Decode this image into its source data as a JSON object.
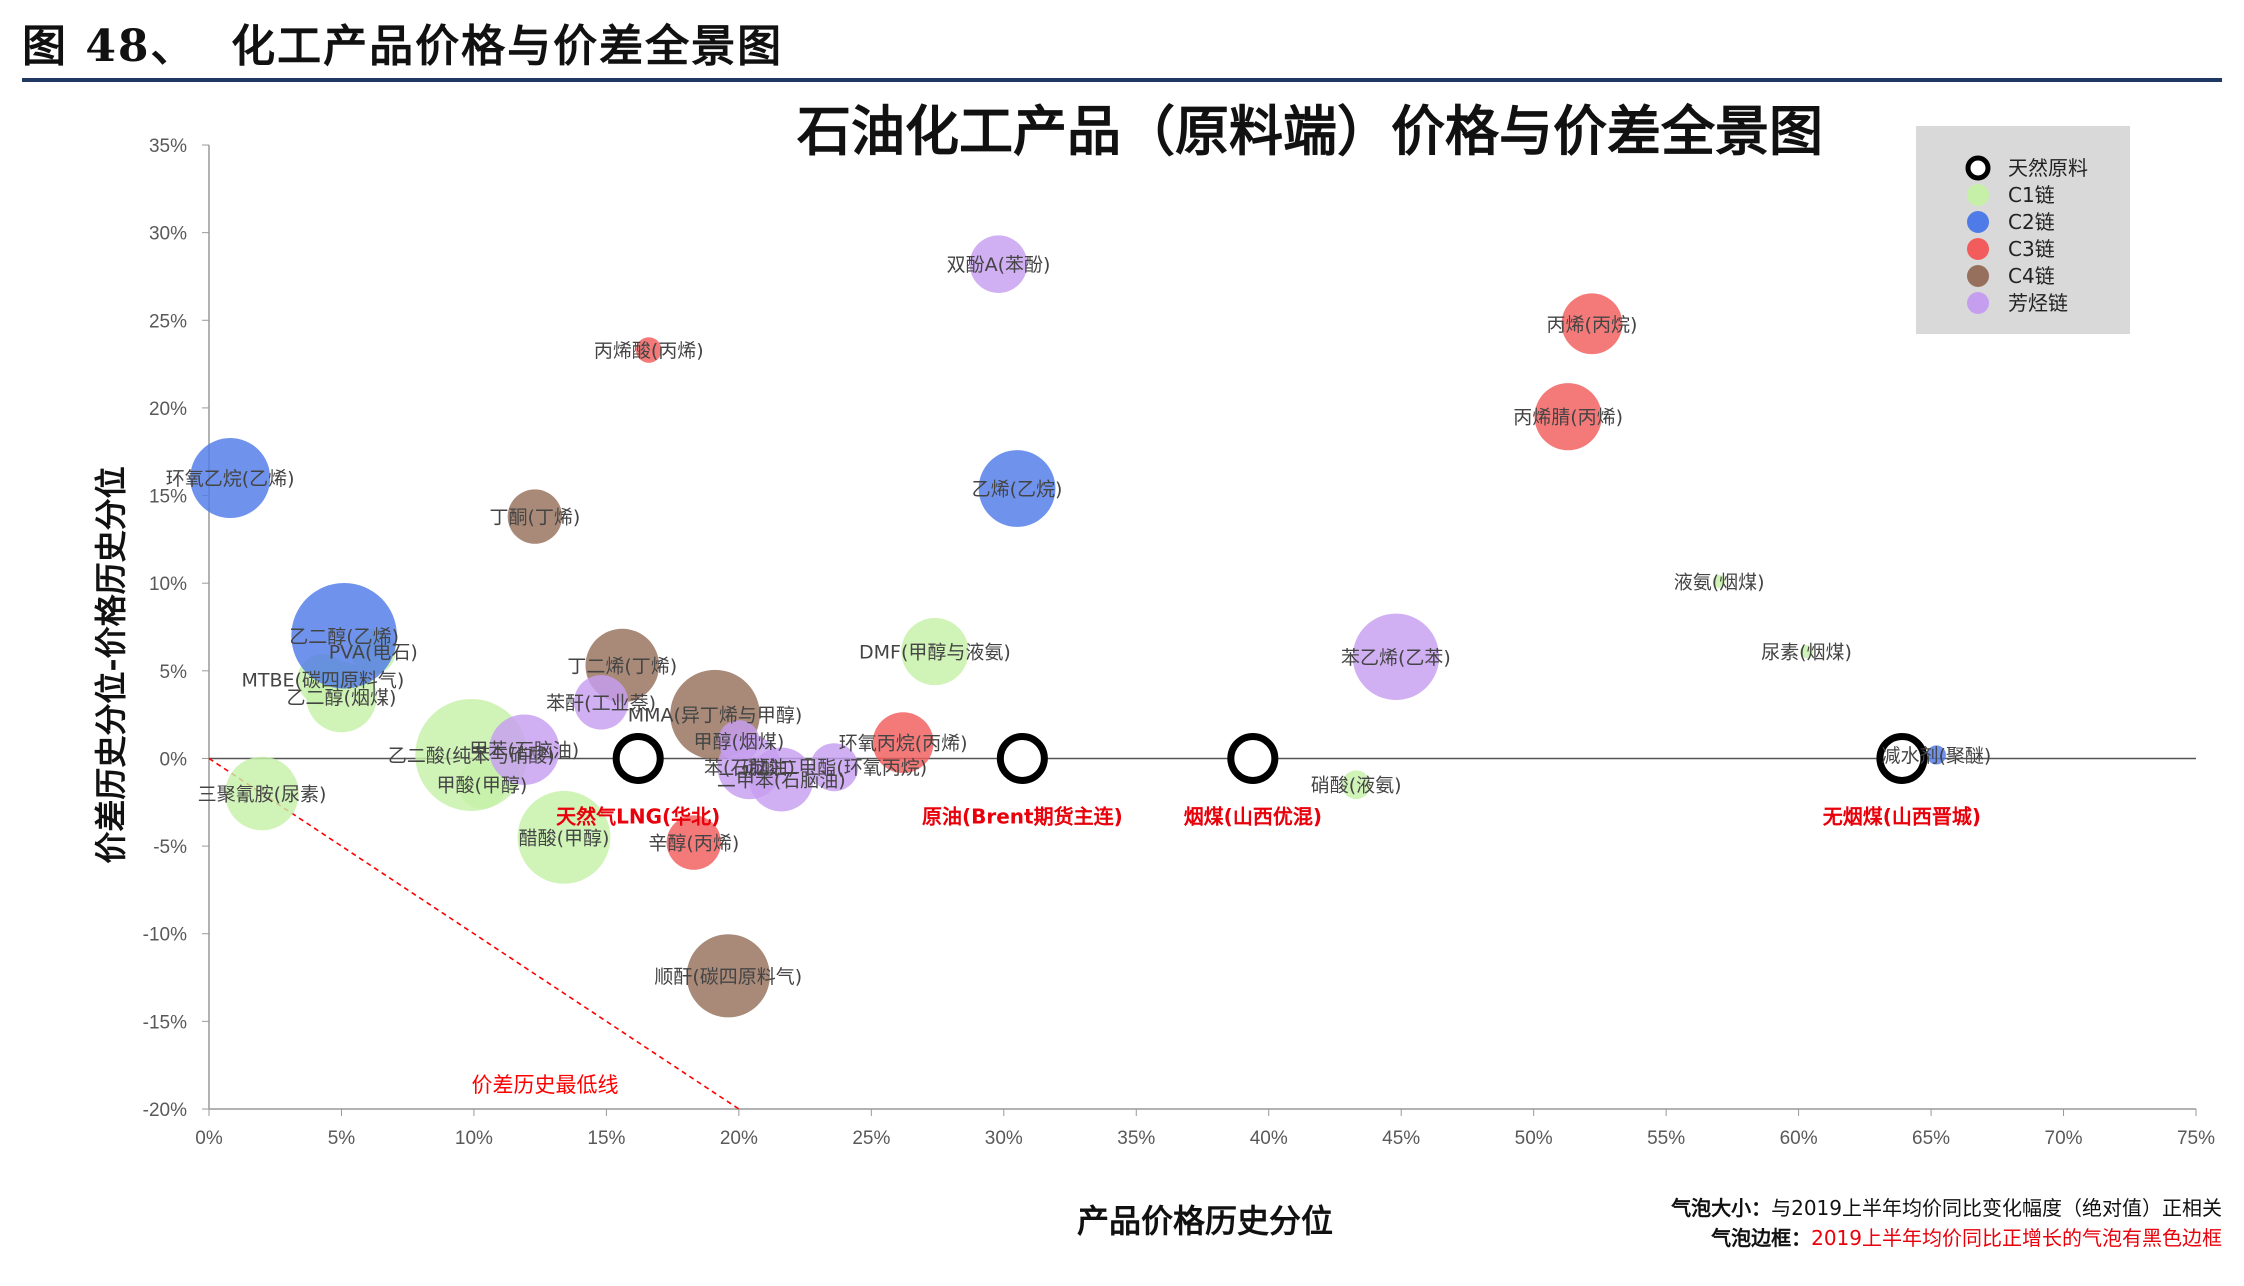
{
  "figure_title": "图 48、  化工产品价格与价差全景图",
  "footnotes": [
    {
      "label": "气泡大小：",
      "text": "与2019上半年均价同比变化幅度（绝对值）正相关",
      "color": "#111111"
    },
    {
      "label": "气泡边框：",
      "text": "2019上半年均价同比正增长的气泡有黑色边框",
      "color": "#e8000b"
    }
  ],
  "chart_data": {
    "type": "scatter",
    "title": "石油化工产品（原料端）价格与价差全景图",
    "xlabel": "产品价格历史分位",
    "ylabel": "价差历史分位-价格历史分位",
    "xlim": [
      0,
      75
    ],
    "ylim": [
      -20,
      35
    ],
    "x_ticks": [
      "0%",
      "5%",
      "10%",
      "15%",
      "20%",
      "25%",
      "30%",
      "35%",
      "40%",
      "45%",
      "50%",
      "55%",
      "60%",
      "65%",
      "70%",
      "75%"
    ],
    "y_ticks": [
      "35%",
      "30%",
      "25%",
      "20%",
      "15%",
      "10%",
      "5%",
      "0%",
      "-5%",
      "-10%",
      "-15%",
      "-20%"
    ],
    "grid": false,
    "legend_position": "top-right",
    "legend": [
      {
        "name": "天然原料",
        "color": "#000000",
        "marker": "ring"
      },
      {
        "name": "C1链",
        "color": "#c6f0a8",
        "marker": "dot"
      },
      {
        "name": "C2链",
        "color": "#4f7be8",
        "marker": "dot"
      },
      {
        "name": "C3链",
        "color": "#f25c5c",
        "marker": "dot"
      },
      {
        "name": "C4链",
        "color": "#96705c",
        "marker": "dot"
      },
      {
        "name": "芳烃链",
        "color": "#c69ef0",
        "marker": "dot"
      }
    ],
    "reference_line": {
      "label": "价差历史最低线",
      "from": [
        0,
        0
      ],
      "to": [
        20,
        -20
      ],
      "color": "#ff0000"
    },
    "series": [
      {
        "name": "天然原料",
        "color": "#000000",
        "points": [
          {
            "label": "天然气LNG(华北)",
            "x": 16.2,
            "y": 0,
            "size": 1
          },
          {
            "label": "原油(Brent期货主连)",
            "x": 30.7,
            "y": 0,
            "size": 1
          },
          {
            "label": "烟煤(山西优混)",
            "x": 39.4,
            "y": 0,
            "size": 1
          },
          {
            "label": "无烟煤(山西晋城)",
            "x": 63.9,
            "y": 0,
            "size": 1
          }
        ]
      },
      {
        "name": "C1链",
        "color": "#c6f0a8",
        "points": [
          {
            "label": "乙二醇(烟煤)",
            "x": 5.0,
            "y": 3.5,
            "size": 2.2
          },
          {
            "label": "PVA(电石)",
            "x": 6.2,
            "y": 6.1,
            "size": 1.4
          },
          {
            "label": "MTBE(碳四原料气)",
            "x": 4.3,
            "y": 4.5,
            "size": 1.6
          },
          {
            "label": "乙二酸(纯苯与硝酸)",
            "x": 9.9,
            "y": 0.2,
            "size": 3.5
          },
          {
            "label": "甲酸(甲醇)",
            "x": 10.3,
            "y": -1.5,
            "size": 1.5
          },
          {
            "label": "三聚氰胺(尿素)",
            "x": 2.0,
            "y": -2.0,
            "size": 2.3
          },
          {
            "label": "醋酸(甲醇)",
            "x": 13.4,
            "y": -4.5,
            "size": 2.9
          },
          {
            "label": "DMF(甲醇与液氨)",
            "x": 27.4,
            "y": 6.1,
            "size": 2.1
          },
          {
            "label": "液氨(烟煤)",
            "x": 57.0,
            "y": 10.1,
            "size": 0.4
          },
          {
            "label": "尿素(烟煤)",
            "x": 60.3,
            "y": 6.1,
            "size": 0.4
          },
          {
            "label": "硝酸(液氨)",
            "x": 43.3,
            "y": -1.5,
            "size": 0.9
          }
        ]
      },
      {
        "name": "C2链",
        "color": "#4f7be8",
        "points": [
          {
            "label": "环氧乙烷(乙烯)",
            "x": 0.8,
            "y": 16.0,
            "size": 2.5
          },
          {
            "label": "乙二醇(乙烯)",
            "x": 5.1,
            "y": 7.0,
            "size": 3.3
          },
          {
            "label": "乙烯(乙烷)",
            "x": 30.5,
            "y": 15.4,
            "size": 2.4
          },
          {
            "label": "减水剂(聚醚)",
            "x": 65.2,
            "y": 0.2,
            "size": 0.6
          }
        ]
      },
      {
        "name": "C3链",
        "color": "#f25c5c",
        "points": [
          {
            "label": "丙烯酸(丙烯)",
            "x": 16.6,
            "y": 23.3,
            "size": 0.8
          },
          {
            "label": "丙烯(丙烷)",
            "x": 52.2,
            "y": 24.8,
            "size": 1.9
          },
          {
            "label": "丙烯腈(丙烯)",
            "x": 51.3,
            "y": 19.5,
            "size": 2.1
          },
          {
            "label": "环氧丙烷(丙烯)",
            "x": 26.2,
            "y": 0.9,
            "size": 1.9
          },
          {
            "label": "辛醇(丙烯)",
            "x": 18.3,
            "y": -4.8,
            "size": 1.7
          }
        ]
      },
      {
        "name": "C4链",
        "color": "#96705c",
        "points": [
          {
            "label": "丁酮(丁烯)",
            "x": 12.3,
            "y": 13.8,
            "size": 1.7
          },
          {
            "label": "丁二烯(丁烯)",
            "x": 15.6,
            "y": 5.3,
            "size": 2.3
          },
          {
            "label": "MMA(异丁烯与甲醇)",
            "x": 19.1,
            "y": 2.5,
            "size": 2.8
          },
          {
            "label": "顺酐(碳四原料气)",
            "x": 19.6,
            "y": -12.4,
            "size": 2.6
          }
        ]
      },
      {
        "name": "芳烃链",
        "color": "#c69ef0",
        "points": [
          {
            "label": "双酚A(苯酚)",
            "x": 29.8,
            "y": 28.2,
            "size": 1.8
          },
          {
            "label": "苯乙烯(乙苯)",
            "x": 44.8,
            "y": 5.8,
            "size": 2.7
          },
          {
            "label": "苯酐(工业萘)",
            "x": 14.8,
            "y": 3.2,
            "size": 1.7
          },
          {
            "label": "甲苯(石脑油)",
            "x": 11.9,
            "y": 0.5,
            "size": 2.2
          },
          {
            "label": "苯(石脑油)",
            "x": 20.4,
            "y": -0.5,
            "size": 2.0
          },
          {
            "label": "二甲苯(石脑油)",
            "x": 21.6,
            "y": -1.2,
            "size": 2.0
          },
          {
            "label": "甲醇(烟煤)",
            "x": 20.0,
            "y": 1.0,
            "size": 1.3
          },
          {
            "label": "碳酸二甲酯(环氧丙烷)",
            "x": 23.6,
            "y": -0.5,
            "size": 1.5
          }
        ]
      }
    ]
  }
}
